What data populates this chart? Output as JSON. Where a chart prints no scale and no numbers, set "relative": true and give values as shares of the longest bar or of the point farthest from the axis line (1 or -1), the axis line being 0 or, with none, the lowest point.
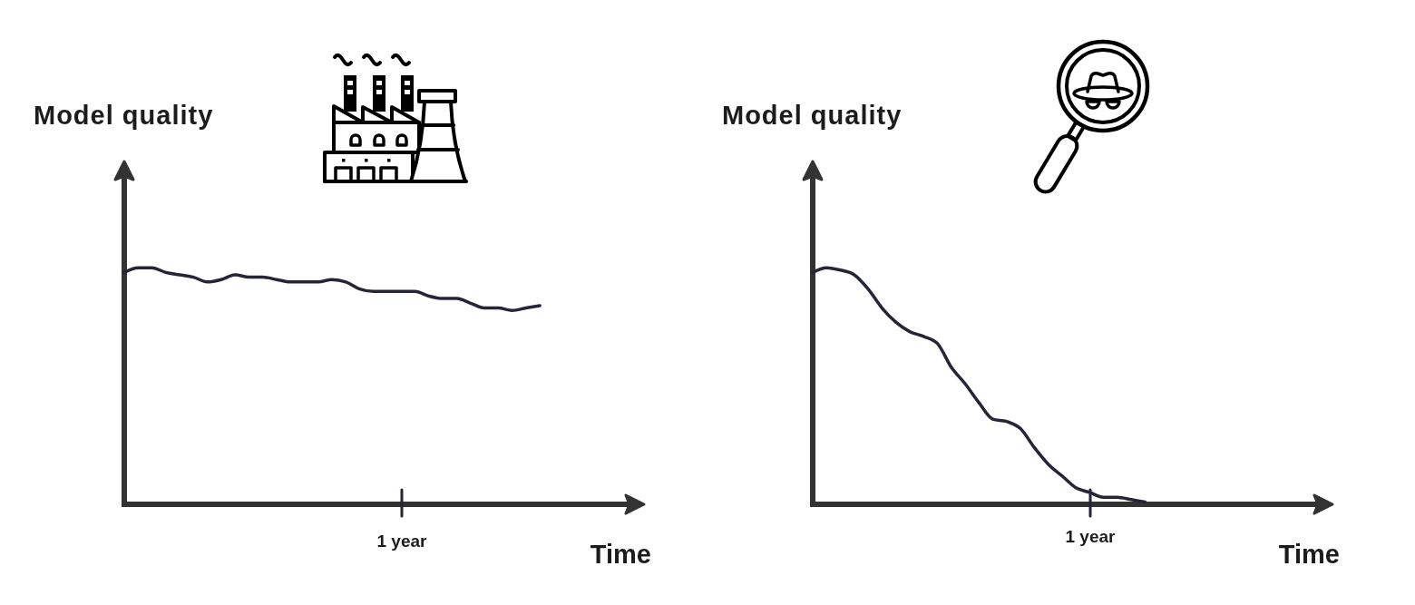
{
  "chart_data": [
    {
      "type": "line",
      "ylabel": "Model quality",
      "xlabel": "Time",
      "relative": true,
      "annotations": [
        "1 year"
      ],
      "color": "#25253a",
      "categories": [
        null,
        null,
        null,
        null,
        null,
        null,
        null,
        null,
        null,
        null,
        null,
        null,
        null,
        null,
        null,
        null,
        null,
        null,
        null,
        null,
        null,
        null,
        null,
        null,
        null,
        null,
        null,
        null,
        null,
        null,
        null
      ],
      "values": [
        0.98,
        1.0,
        1.0,
        0.98,
        0.97,
        0.96,
        0.94,
        0.95,
        0.97,
        0.96,
        0.96,
        0.95,
        0.94,
        0.94,
        0.94,
        0.95,
        0.94,
        0.91,
        0.9,
        0.9,
        0.9,
        0.9,
        0.88,
        0.87,
        0.87,
        0.85,
        0.83,
        0.83,
        0.82,
        0.83,
        0.84
      ]
    },
    {
      "type": "line",
      "ylabel": "Model quality",
      "xlabel": "Time",
      "relative": true,
      "annotations": [
        "1 year"
      ],
      "color": "#25253a",
      "categories": [
        null,
        null,
        null,
        null,
        null,
        null,
        null,
        null,
        null,
        null,
        null,
        null,
        null,
        null,
        null,
        null,
        null,
        null,
        null,
        null,
        null,
        null,
        null,
        null,
        null
      ],
      "values": [
        0.98,
        1.0,
        0.99,
        0.97,
        0.91,
        0.83,
        0.77,
        0.73,
        0.71,
        0.68,
        0.58,
        0.51,
        0.43,
        0.36,
        0.35,
        0.32,
        0.24,
        0.17,
        0.12,
        0.07,
        0.05,
        0.03,
        0.03,
        0.02,
        0.01
      ]
    }
  ]
}
